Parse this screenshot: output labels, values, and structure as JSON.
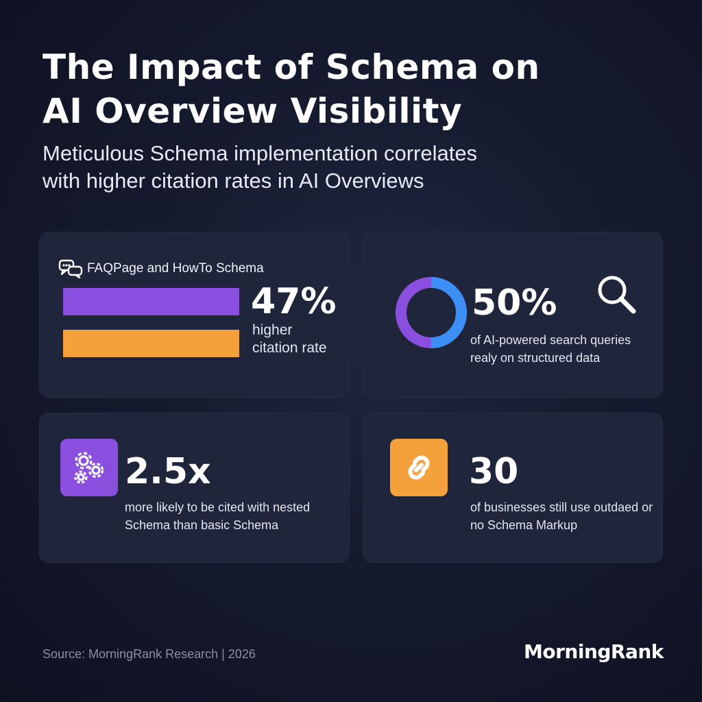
{
  "header": {
    "title_line1": "The Impact of Schema on",
    "title_line2": "AI Overview Visibility",
    "subtitle_line1": "Meticulous Schema implementation correlates",
    "subtitle_line2": "with higher citation rates in AI Overviews"
  },
  "cards": {
    "faq": {
      "icon": "chat-bubbles-icon",
      "label": "FAQPage and HowTo Schema",
      "stat": "47%",
      "desc_line1": "higher",
      "desc_line2": "citation rate",
      "bar_colors": [
        "#8b4fe0",
        "#f4a13c"
      ]
    },
    "structured": {
      "icon": "search-icon",
      "stat": "50%",
      "desc_line1": "of AI-powered search queries",
      "desc_line2": "realy on structured data",
      "donut_share": 0.5,
      "donut_colors": [
        "#8b4fe0",
        "#3b8ff5"
      ]
    },
    "nested": {
      "icon": "gears-icon",
      "stat": "2.5x",
      "desc_line1": "more likely to be cited with nested",
      "desc_line2": "Schema than basic Schema",
      "icon_color": "#8b4fe0"
    },
    "outdated": {
      "icon": "link-icon",
      "stat": "30",
      "desc_line1": "of businesses still use outdaed or",
      "desc_line2": "no Schema Markup",
      "icon_color": "#f4a13c"
    }
  },
  "footer": {
    "source": "Source: MorningRank Research | 2026",
    "brand": "MorningRank"
  }
}
